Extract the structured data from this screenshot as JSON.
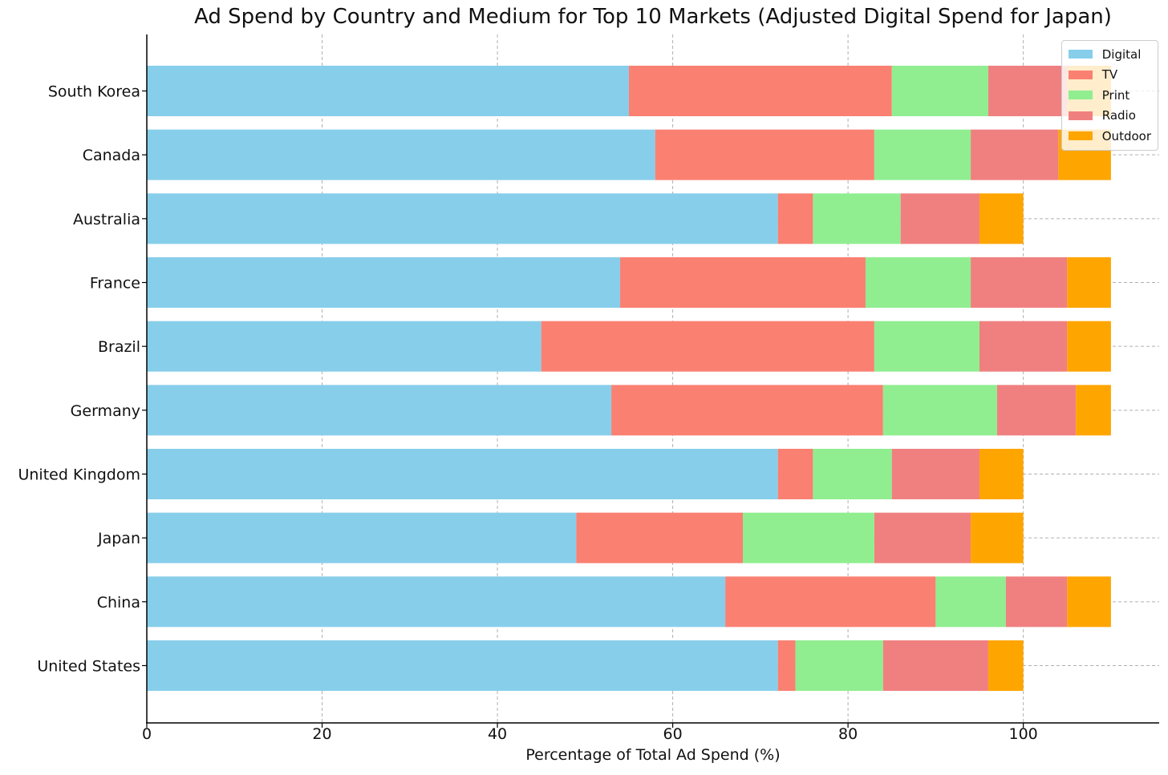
{
  "chart_data": {
    "type": "bar",
    "orientation": "horizontal",
    "stacked": true,
    "title": "Ad Spend by Country and Medium for Top 10 Markets (Adjusted Digital Spend for Japan)",
    "xlabel": "Percentage of Total Ad Spend (%)",
    "ylabel": "",
    "xlim": [
      0,
      115.5
    ],
    "xticks": [
      0,
      20,
      40,
      60,
      80,
      100
    ],
    "grid": true,
    "legend_position": "top-right",
    "categories": [
      "United States",
      "China",
      "Japan",
      "United Kingdom",
      "Germany",
      "Brazil",
      "France",
      "Australia",
      "Canada",
      "South Korea"
    ],
    "series": [
      {
        "name": "Digital",
        "color": "#87CEEB",
        "values": [
          72,
          66,
          49,
          72,
          53,
          45,
          54,
          72,
          58,
          55
        ]
      },
      {
        "name": "TV",
        "color": "#FA8072",
        "values": [
          2,
          24,
          19,
          4,
          31,
          38,
          28,
          4,
          25,
          30
        ]
      },
      {
        "name": "Print",
        "color": "#90EE90",
        "values": [
          10,
          8,
          15,
          9,
          13,
          12,
          12,
          10,
          11,
          11
        ]
      },
      {
        "name": "Radio",
        "color": "#F08080",
        "values": [
          12,
          7,
          11,
          10,
          9,
          10,
          11,
          9,
          10,
          9
        ]
      },
      {
        "name": "Outdoor",
        "color": "#FFA500",
        "values": [
          4,
          5,
          6,
          5,
          4,
          5,
          5,
          5,
          6,
          5
        ]
      }
    ]
  }
}
